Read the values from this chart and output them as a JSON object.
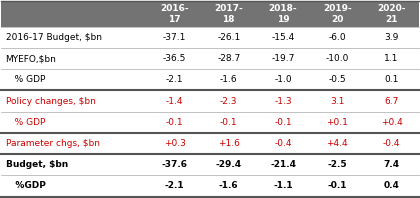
{
  "col_headers": [
    "2016-\n17",
    "2017-\n18",
    "2018-\n19",
    "2019-\n20",
    "2020-\n21"
  ],
  "rows": [
    {
      "label": "2016-17 Budget, $bn",
      "values": [
        "-37.1",
        "-26.1",
        "-15.4",
        "-6.0",
        "3.9"
      ],
      "label_color": "#000000",
      "value_color": "#000000",
      "bold": false,
      "thick_top": false
    },
    {
      "label": "MYEFO,$bn",
      "values": [
        "-36.5",
        "-28.7",
        "-19.7",
        "-10.0",
        "1.1"
      ],
      "label_color": "#000000",
      "value_color": "#000000",
      "bold": false,
      "thick_top": false
    },
    {
      "label": "   % GDP",
      "values": [
        "-2.1",
        "-1.6",
        "-1.0",
        "-0.5",
        "0.1"
      ],
      "label_color": "#000000",
      "value_color": "#000000",
      "bold": false,
      "thick_top": false
    },
    {
      "label": "Policy changes, $bn",
      "values": [
        "-1.4",
        "-2.3",
        "-1.3",
        "3.1",
        "6.7"
      ],
      "label_color": "#cc0000",
      "value_color": "#cc0000",
      "bold": false,
      "thick_top": true
    },
    {
      "label": "   % GDP",
      "values": [
        "-0.1",
        "-0.1",
        "-0.1",
        "+0.1",
        "+0.4"
      ],
      "label_color": "#cc0000",
      "value_color": "#cc0000",
      "bold": false,
      "thick_top": false
    },
    {
      "label": "Parameter chgs, $bn",
      "values": [
        "+0.3",
        "+1.6",
        "-0.4",
        "+4.4",
        "-0.4"
      ],
      "label_color": "#cc0000",
      "value_color": "#cc0000",
      "bold": false,
      "thick_top": true
    },
    {
      "label": "Budget, $bn",
      "values": [
        "-37.6",
        "-29.4",
        "-21.4",
        "-2.5",
        "7.4"
      ],
      "label_color": "#000000",
      "value_color": "#000000",
      "bold": true,
      "thick_top": true
    },
    {
      "label": "   %GDP",
      "values": [
        "-2.1",
        "-1.6",
        "-1.1",
        "-0.1",
        "0.4"
      ],
      "label_color": "#000000",
      "value_color": "#000000",
      "bold": true,
      "thick_top": false
    }
  ],
  "header_bg": "#737373",
  "header_text_color": "#ffffff",
  "bg_color": "#ffffff",
  "line_color": "#aaaaaa",
  "thick_line_color": "#555555"
}
